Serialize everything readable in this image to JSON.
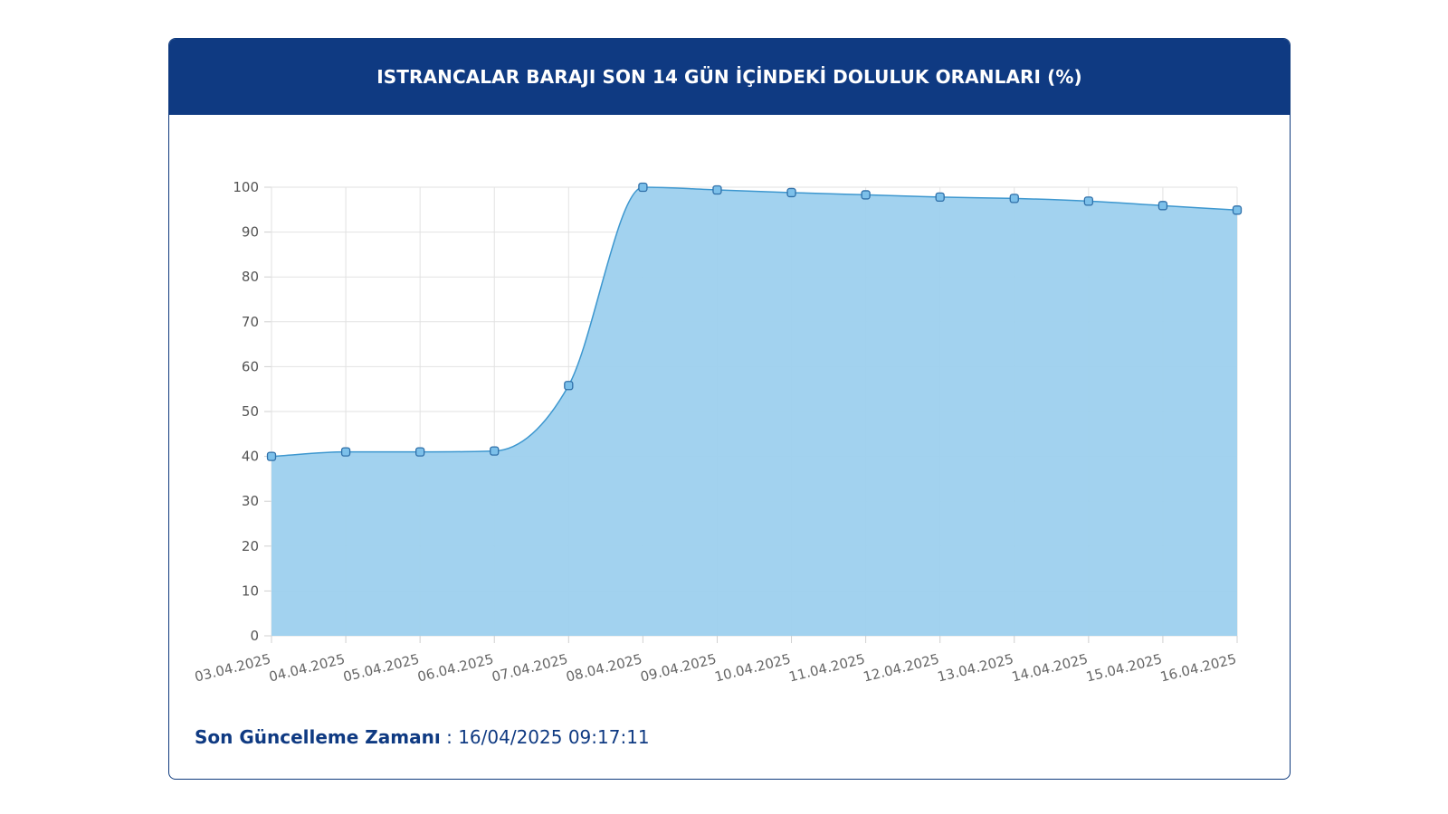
{
  "header": {
    "title": "ISTRANCALAR BARAJI SON 14 GÜN İÇİNDEKİ DOLULUK ORANLARI (%)"
  },
  "footer": {
    "label": "Son Güncelleme Zamanı",
    "separator": " : ",
    "value": "16/04/2025 09:17:11"
  },
  "colors": {
    "header_bg": "#0f3a82",
    "area_fill": "#9dd0ee",
    "line": "#3d97cf",
    "marker_fill": "#7cc0ea",
    "marker_stroke": "#2f6fa8"
  },
  "chart_data": {
    "type": "area",
    "title": "ISTRANCALAR BARAJI SON 14 GÜN İÇİNDEKİ DOLULUK ORANLARI (%)",
    "xlabel": "",
    "ylabel": "",
    "ylim": [
      0,
      100
    ],
    "yticks": [
      0,
      10,
      20,
      30,
      40,
      50,
      60,
      70,
      80,
      90,
      100
    ],
    "grid": true,
    "x": [
      "03.04.2025",
      "04.04.2025",
      "05.04.2025",
      "06.04.2025",
      "07.04.2025",
      "08.04.2025",
      "09.04.2025",
      "10.04.2025",
      "11.04.2025",
      "12.04.2025",
      "13.04.2025",
      "14.04.2025",
      "15.04.2025",
      "16.04.2025"
    ],
    "series": [
      {
        "name": "",
        "values": [
          40.0,
          41.0,
          41.0,
          41.2,
          55.8,
          100.0,
          99.4,
          98.8,
          98.3,
          97.8,
          97.5,
          96.9,
          95.9,
          94.9
        ]
      }
    ]
  }
}
